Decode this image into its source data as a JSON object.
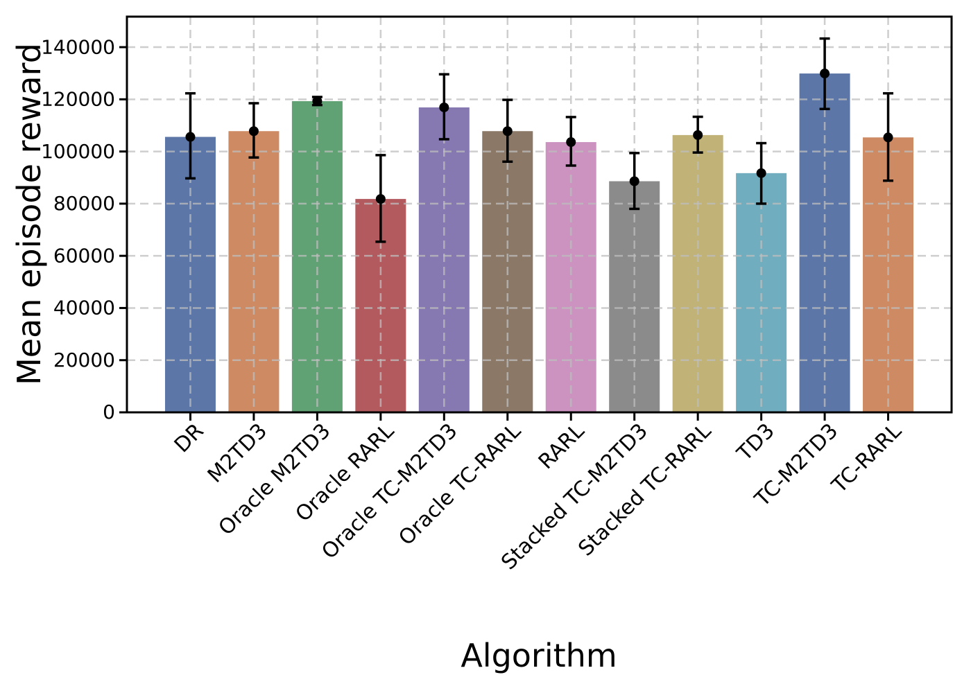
{
  "figure": {
    "background": "#ffffff",
    "spine_color": "#000000",
    "grid_color": "#bebebe"
  },
  "chart_data": {
    "type": "bar",
    "title": "",
    "xlabel": "Algorithm",
    "ylabel": "Mean episode reward",
    "categories": [
      "DR",
      "M2TD3",
      "Oracle M2TD3",
      "Oracle RARL",
      "Oracle TC-M2TD3",
      "Oracle TC-RARL",
      "RARL",
      "Stacked TC-M2TD3",
      "Stacked TC-RARL",
      "TD3",
      "TC-M2TD3",
      "TC-RARL"
    ],
    "values": [
      105600,
      107800,
      119300,
      81800,
      116900,
      107800,
      103600,
      88600,
      106300,
      91700,
      129900,
      105400
    ],
    "error_upper": [
      122300,
      118500,
      120900,
      98600,
      129600,
      119800,
      113200,
      99400,
      113300,
      103200,
      143300,
      122300
    ],
    "error_lower": [
      89700,
      97700,
      117800,
      65400,
      104700,
      96100,
      94600,
      78000,
      99600,
      80000,
      116300,
      88800
    ],
    "bar_colors": [
      "#5b76a7",
      "#cd8a63",
      "#60a274",
      "#b35a5e",
      "#8679b1",
      "#8b7867",
      "#cc93c1",
      "#8b8b8b",
      "#c1b277",
      "#70aebf",
      "#5b76a7",
      "#cd8a63"
    ],
    "marker": "black-dot",
    "marker_color": "#000000",
    "error_color": "#000000",
    "ylim": [
      0,
      151700
    ],
    "yticks": [
      0,
      20000,
      40000,
      60000,
      80000,
      100000,
      120000,
      140000
    ],
    "grid": "dashed-both-axes",
    "legend": "none"
  }
}
